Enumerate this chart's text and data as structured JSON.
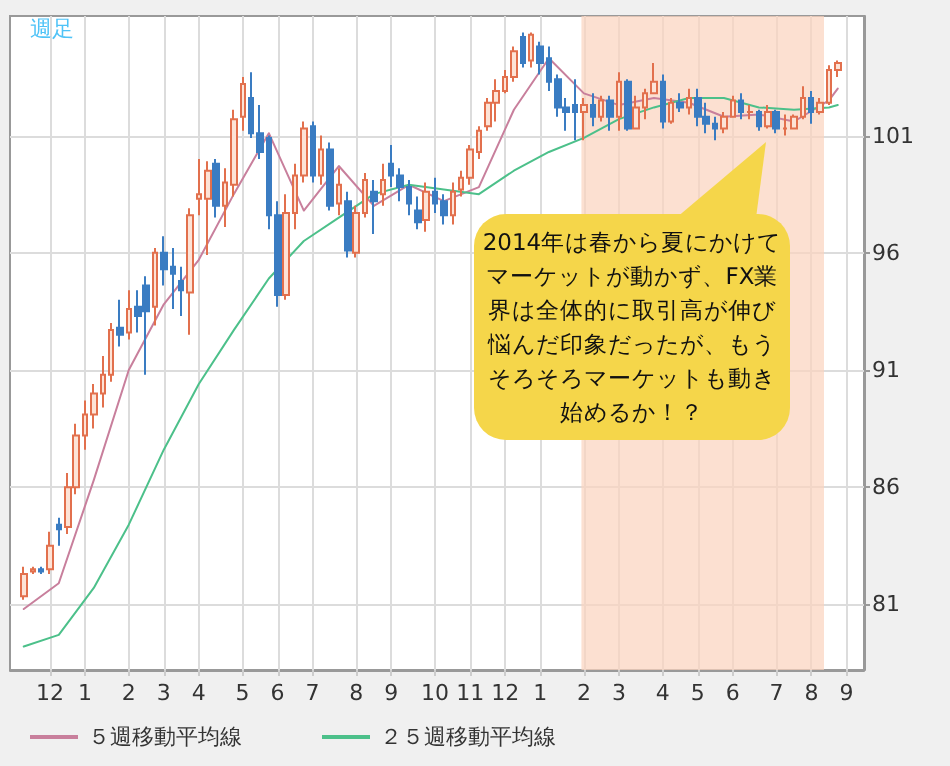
{
  "chart_data": {
    "type": "candlestick",
    "title": "週足",
    "annotations": [
      "2014年は春から夏にかけてマーケットが動かず、FX業界は全体的に取引高が伸び悩んだ印象だったが、もうそろそろマーケットも動き始めるか！？"
    ],
    "x": [
      "2012-11-12",
      "2012-11-19",
      "2012-11-26",
      "2012-12-03",
      "2012-12-10",
      "2012-12-17",
      "2012-12-24",
      "2012-12-31",
      "2013-01-07",
      "2013-01-14",
      "2013-01-21",
      "2013-01-28",
      "2013-02-04",
      "2013-02-11",
      "2013-02-18",
      "2013-02-25",
      "2013-03-04",
      "2013-03-11",
      "2013-03-18",
      "2013-03-25",
      "2013-04-01",
      "2013-04-08",
      "2013-04-15",
      "2013-04-22",
      "2013-04-29",
      "2013-05-06",
      "2013-05-13",
      "2013-05-20",
      "2013-05-27",
      "2013-06-03",
      "2013-06-10",
      "2013-06-17",
      "2013-06-24",
      "2013-07-01",
      "2013-07-08",
      "2013-07-15",
      "2013-07-22",
      "2013-07-29",
      "2013-08-05",
      "2013-08-12",
      "2013-08-19",
      "2013-08-26",
      "2013-09-02",
      "2013-09-09",
      "2013-09-16",
      "2013-09-23",
      "2013-09-30",
      "2013-10-07",
      "2013-10-14",
      "2013-10-21",
      "2013-10-28",
      "2013-11-04",
      "2013-11-11",
      "2013-11-18",
      "2013-11-25",
      "2013-12-02",
      "2013-12-09",
      "2013-12-16",
      "2013-12-23",
      "2013-12-30",
      "2014-01-06",
      "2014-01-13",
      "2014-01-20",
      "2014-01-27",
      "2014-02-03",
      "2014-02-10",
      "2014-02-17",
      "2014-02-24",
      "2014-03-03",
      "2014-03-10",
      "2014-03-17",
      "2014-03-24",
      "2014-03-31",
      "2014-04-07",
      "2014-04-14",
      "2014-04-21",
      "2014-04-28",
      "2014-05-05",
      "2014-05-12",
      "2014-05-19",
      "2014-05-26",
      "2014-06-02",
      "2014-06-09",
      "2014-06-16",
      "2014-06-23",
      "2014-06-30",
      "2014-07-07",
      "2014-07-14",
      "2014-07-21",
      "2014-07-28",
      "2014-08-04",
      "2014-08-11",
      "2014-08-18",
      "2014-08-25"
    ],
    "ohlc": [
      [
        81.35,
        82.6,
        81.2,
        82.3
      ],
      [
        82.4,
        82.6,
        82.3,
        82.5
      ],
      [
        82.5,
        82.6,
        82.3,
        82.4
      ],
      [
        82.5,
        84.1,
        82.3,
        83.5
      ],
      [
        84.4,
        84.7,
        83.5,
        84.2
      ],
      [
        84.3,
        86.6,
        84.0,
        86.0
      ],
      [
        86.0,
        88.7,
        85.7,
        88.2
      ],
      [
        88.2,
        89.7,
        87.6,
        89.1
      ],
      [
        89.1,
        90.4,
        88.5,
        90.0
      ],
      [
        90.0,
        91.6,
        89.4,
        90.8
      ],
      [
        90.8,
        93.0,
        90.5,
        92.7
      ],
      [
        92.8,
        94.0,
        92.0,
        92.5
      ],
      [
        92.6,
        94.4,
        92.3,
        93.6
      ],
      [
        93.7,
        94.4,
        92.6,
        93.3
      ],
      [
        94.6,
        95.0,
        90.8,
        93.5
      ],
      [
        93.7,
        96.2,
        92.9,
        96.0
      ],
      [
        96.0,
        96.7,
        94.6,
        95.3
      ],
      [
        95.4,
        96.2,
        93.6,
        95.1
      ],
      [
        94.8,
        95.4,
        93.3,
        94.4
      ],
      [
        94.3,
        97.9,
        92.5,
        97.6
      ],
      [
        98.3,
        100.0,
        97.6,
        98.5
      ],
      [
        98.3,
        99.9,
        95.9,
        99.5
      ],
      [
        99.8,
        100.0,
        97.5,
        98.0
      ],
      [
        98.0,
        99.6,
        97.1,
        99.0
      ],
      [
        98.9,
        102.1,
        98.4,
        101.7
      ],
      [
        101.8,
        103.5,
        101.2,
        103.2
      ],
      [
        102.6,
        103.7,
        100.9,
        101.1
      ],
      [
        101.1,
        102.3,
        100.0,
        100.3
      ],
      [
        100.9,
        101.0,
        97.0,
        97.6
      ],
      [
        97.6,
        98.2,
        93.7,
        94.2
      ],
      [
        94.2,
        98.5,
        94.0,
        97.7
      ],
      [
        97.7,
        99.8,
        97.0,
        99.3
      ],
      [
        99.3,
        101.6,
        99.0,
        101.3
      ],
      [
        101.4,
        101.6,
        99.0,
        99.3
      ],
      [
        99.3,
        101.0,
        98.9,
        100.4
      ],
      [
        100.4,
        100.7,
        97.8,
        98.0
      ],
      [
        98.1,
        99.6,
        97.6,
        98.9
      ],
      [
        98.2,
        98.6,
        95.8,
        96.1
      ],
      [
        96.0,
        98.0,
        95.8,
        97.7
      ],
      [
        97.7,
        99.4,
        97.5,
        99.1
      ],
      [
        98.6,
        99.1,
        96.8,
        98.2
      ],
      [
        98.5,
        99.8,
        98.0,
        99.1
      ],
      [
        99.8,
        100.6,
        98.8,
        99.3
      ],
      [
        99.3,
        99.6,
        98.2,
        98.8
      ],
      [
        98.8,
        99.1,
        97.6,
        98.1
      ],
      [
        97.8,
        98.4,
        97.0,
        97.3
      ],
      [
        97.4,
        99.0,
        96.9,
        98.6
      ],
      [
        98.6,
        99.2,
        97.7,
        98.1
      ],
      [
        98.2,
        98.5,
        97.2,
        97.6
      ],
      [
        97.6,
        99.0,
        97.2,
        98.6
      ],
      [
        98.7,
        99.5,
        98.4,
        99.2
      ],
      [
        99.2,
        100.6,
        98.9,
        100.4
      ],
      [
        100.3,
        101.4,
        100.0,
        101.2
      ],
      [
        101.4,
        102.6,
        101.2,
        102.4
      ],
      [
        102.4,
        103.4,
        101.6,
        102.9
      ],
      [
        102.9,
        103.8,
        102.8,
        103.5
      ],
      [
        103.5,
        104.8,
        103.3,
        104.6
      ],
      [
        105.2,
        105.4,
        103.9,
        104.1
      ],
      [
        104.2,
        105.4,
        103.9,
        105.3
      ],
      [
        104.8,
        105.0,
        103.6,
        104.1
      ],
      [
        104.3,
        104.8,
        102.9,
        103.3
      ],
      [
        103.4,
        103.6,
        101.8,
        102.2
      ],
      [
        102.2,
        102.6,
        101.2,
        102.0
      ],
      [
        102.3,
        103.4,
        100.8,
        102.0
      ],
      [
        102.0,
        102.6,
        100.8,
        102.3
      ],
      [
        102.3,
        102.8,
        101.4,
        101.8
      ],
      [
        101.8,
        102.7,
        101.6,
        102.5
      ],
      [
        102.5,
        102.7,
        101.2,
        101.8
      ],
      [
        101.8,
        103.7,
        101.2,
        103.3
      ],
      [
        103.3,
        103.4,
        101.2,
        101.3
      ],
      [
        101.3,
        102.7,
        101.3,
        102.2
      ],
      [
        102.2,
        103.0,
        101.7,
        102.8
      ],
      [
        102.8,
        104.1,
        102.8,
        103.3
      ],
      [
        103.3,
        103.6,
        101.3,
        101.6
      ],
      [
        101.6,
        102.6,
        101.5,
        102.4
      ],
      [
        102.4,
        102.8,
        102.0,
        102.2
      ],
      [
        102.2,
        103.0,
        101.9,
        102.6
      ],
      [
        102.6,
        103.0,
        101.4,
        101.8
      ],
      [
        101.8,
        102.4,
        101.1,
        101.5
      ],
      [
        101.5,
        101.8,
        100.8,
        101.3
      ],
      [
        101.3,
        102.0,
        101.1,
        101.8
      ],
      [
        101.8,
        102.7,
        101.8,
        102.5
      ],
      [
        102.5,
        102.8,
        101.7,
        102.0
      ],
      [
        102.0,
        102.3,
        101.7,
        102.0
      ],
      [
        102.0,
        102.1,
        101.2,
        101.4
      ],
      [
        101.4,
        102.3,
        101.3,
        102.0
      ],
      [
        102.0,
        102.1,
        101.1,
        101.3
      ],
      [
        101.3,
        101.9,
        101.0,
        101.3
      ],
      [
        101.3,
        101.9,
        101.3,
        101.8
      ],
      [
        101.8,
        103.1,
        101.7,
        102.6
      ],
      [
        102.6,
        102.9,
        101.5,
        102.0
      ],
      [
        102.0,
        102.6,
        101.9,
        102.4
      ],
      [
        102.4,
        104.0,
        102.3,
        103.8
      ],
      [
        103.8,
        104.2,
        103.5,
        104.1
      ]
    ],
    "series": [
      {
        "type": "line",
        "name": "５週移動平均線",
        "color": "#c87f9c",
        "x": [
          "2012-11-12",
          "2012-12-10",
          "2013-01-07",
          "2013-02-04",
          "2013-03-04",
          "2013-04-01",
          "2013-04-29",
          "2013-05-27",
          "2013-06-24",
          "2013-07-22",
          "2013-08-19",
          "2013-09-16",
          "2013-10-14",
          "2013-11-11",
          "2013-12-09",
          "2014-01-06",
          "2014-02-03",
          "2014-03-03",
          "2014-03-31",
          "2014-04-28",
          "2014-05-26",
          "2014-06-23",
          "2014-07-21",
          "2014-08-18",
          "2014-08-25"
        ],
        "values": [
          80.8,
          81.9,
          86.3,
          91.0,
          93.8,
          95.7,
          98.5,
          101.1,
          97.8,
          99.7,
          98.0,
          98.9,
          98.2,
          98.8,
          102.1,
          104.3,
          102.8,
          102.3,
          102.6,
          102.4,
          101.8,
          101.9,
          101.6,
          102.5,
          103.0
        ]
      },
      {
        "type": "line",
        "name": "２５週移動平均線",
        "color": "#4cc08a",
        "x": [
          "2012-11-12",
          "2012-12-10",
          "2013-01-07",
          "2013-02-04",
          "2013-03-04",
          "2013-04-01",
          "2013-04-29",
          "2013-05-27",
          "2013-06-24",
          "2013-07-22",
          "2013-08-19",
          "2013-09-16",
          "2013-10-14",
          "2013-11-11",
          "2013-12-09",
          "2014-01-06",
          "2014-02-03",
          "2014-03-03",
          "2014-03-31",
          "2014-04-28",
          "2014-05-26",
          "2014-06-23",
          "2014-07-21",
          "2014-08-18",
          "2014-08-25"
        ],
        "values": [
          79.2,
          79.7,
          81.7,
          84.4,
          87.6,
          90.4,
          92.7,
          94.9,
          96.5,
          97.5,
          98.5,
          98.9,
          98.7,
          98.5,
          99.5,
          100.3,
          100.9,
          101.7,
          102.2,
          102.6,
          102.6,
          102.2,
          102.1,
          102.2,
          102.3
        ]
      }
    ],
    "bands": [
      {
        "axis": "x",
        "from": "2014-02-01",
        "to": "2014-08-14",
        "color": "#fbd3bd"
      }
    ],
    "xlim": [
      "2012-11-01",
      "2014-09-15"
    ],
    "xticks": [
      {
        "value": "2012-12-03",
        "label": "12"
      },
      {
        "value": "2012-12-31",
        "label": "1"
      },
      {
        "value": "2013-02-04",
        "label": "2"
      },
      {
        "value": "2013-03-04",
        "label": "3"
      },
      {
        "value": "2013-04-01",
        "label": "4"
      },
      {
        "value": "2013-05-06",
        "label": "5"
      },
      {
        "value": "2013-06-03",
        "label": "6"
      },
      {
        "value": "2013-07-01",
        "label": "7"
      },
      {
        "value": "2013-08-05",
        "label": "8"
      },
      {
        "value": "2013-09-02",
        "label": "9"
      },
      {
        "value": "2013-10-07",
        "label": "10"
      },
      {
        "value": "2013-11-04",
        "label": "11"
      },
      {
        "value": "2013-12-02",
        "label": "12"
      },
      {
        "value": "2013-12-30",
        "label": "1"
      },
      {
        "value": "2014-02-03",
        "label": "2"
      },
      {
        "value": "2014-03-03",
        "label": "3"
      },
      {
        "value": "2014-04-07",
        "label": "4"
      },
      {
        "value": "2014-05-05",
        "label": "5"
      },
      {
        "value": "2014-06-02",
        "label": "6"
      },
      {
        "value": "2014-07-07",
        "label": "7"
      },
      {
        "value": "2014-08-04",
        "label": "8"
      },
      {
        "value": "2014-09-01",
        "label": "9"
      }
    ],
    "ylim": [
      78.2,
      106.1
    ],
    "yticks": [
      81,
      86,
      91,
      96,
      101
    ],
    "grid": true,
    "legend": "bottom left",
    "marker": "none",
    "line_style": "solid"
  }
}
